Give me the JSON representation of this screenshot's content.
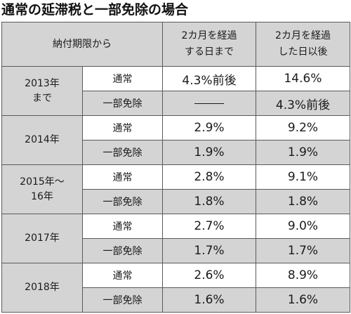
{
  "title": "通常の延滞税と一部免除の場合",
  "header": {
    "period": "納付期限から",
    "col1_line1": "2カ月を経過",
    "col1_line2": "する日まで",
    "col2_line1": "2カ月を経過",
    "col2_line2": "した日以後"
  },
  "rows": [
    {
      "year_line1": "2013年",
      "year_line2": "まで",
      "normal": {
        "label": "通常",
        "col1": "4.3%前後",
        "col2": "14.6%"
      },
      "exempt": {
        "label": "一部免除",
        "col1": "―",
        "col2": "4.3%前後"
      }
    },
    {
      "year_line1": "2014年",
      "year_line2": "",
      "normal": {
        "label": "通常",
        "col1": "2.9%",
        "col2": "9.2%"
      },
      "exempt": {
        "label": "一部免除",
        "col1": "1.9%",
        "col2": "1.9%"
      }
    },
    {
      "year_line1": "2015年〜",
      "year_line2": "16年",
      "normal": {
        "label": "通常",
        "col1": "2.8%",
        "col2": "9.1%"
      },
      "exempt": {
        "label": "一部免除",
        "col1": "1.8%",
        "col2": "1.8%"
      }
    },
    {
      "year_line1": "2017年",
      "year_line2": "",
      "normal": {
        "label": "通常",
        "col1": "2.7%",
        "col2": "9.0%"
      },
      "exempt": {
        "label": "一部免除",
        "col1": "1.7%",
        "col2": "1.7%"
      }
    },
    {
      "year_line1": "2018年",
      "year_line2": "",
      "normal": {
        "label": "通常",
        "col1": "2.6%",
        "col2": "8.9%"
      },
      "exempt": {
        "label": "一部免除",
        "col1": "1.6%",
        "col2": "1.6%"
      }
    }
  ],
  "colors": {
    "header_bg": "#d4d4d4",
    "alt_row_bg": "#d4d4d4",
    "border": "#5a5a5a",
    "text": "#1a1a1a"
  }
}
